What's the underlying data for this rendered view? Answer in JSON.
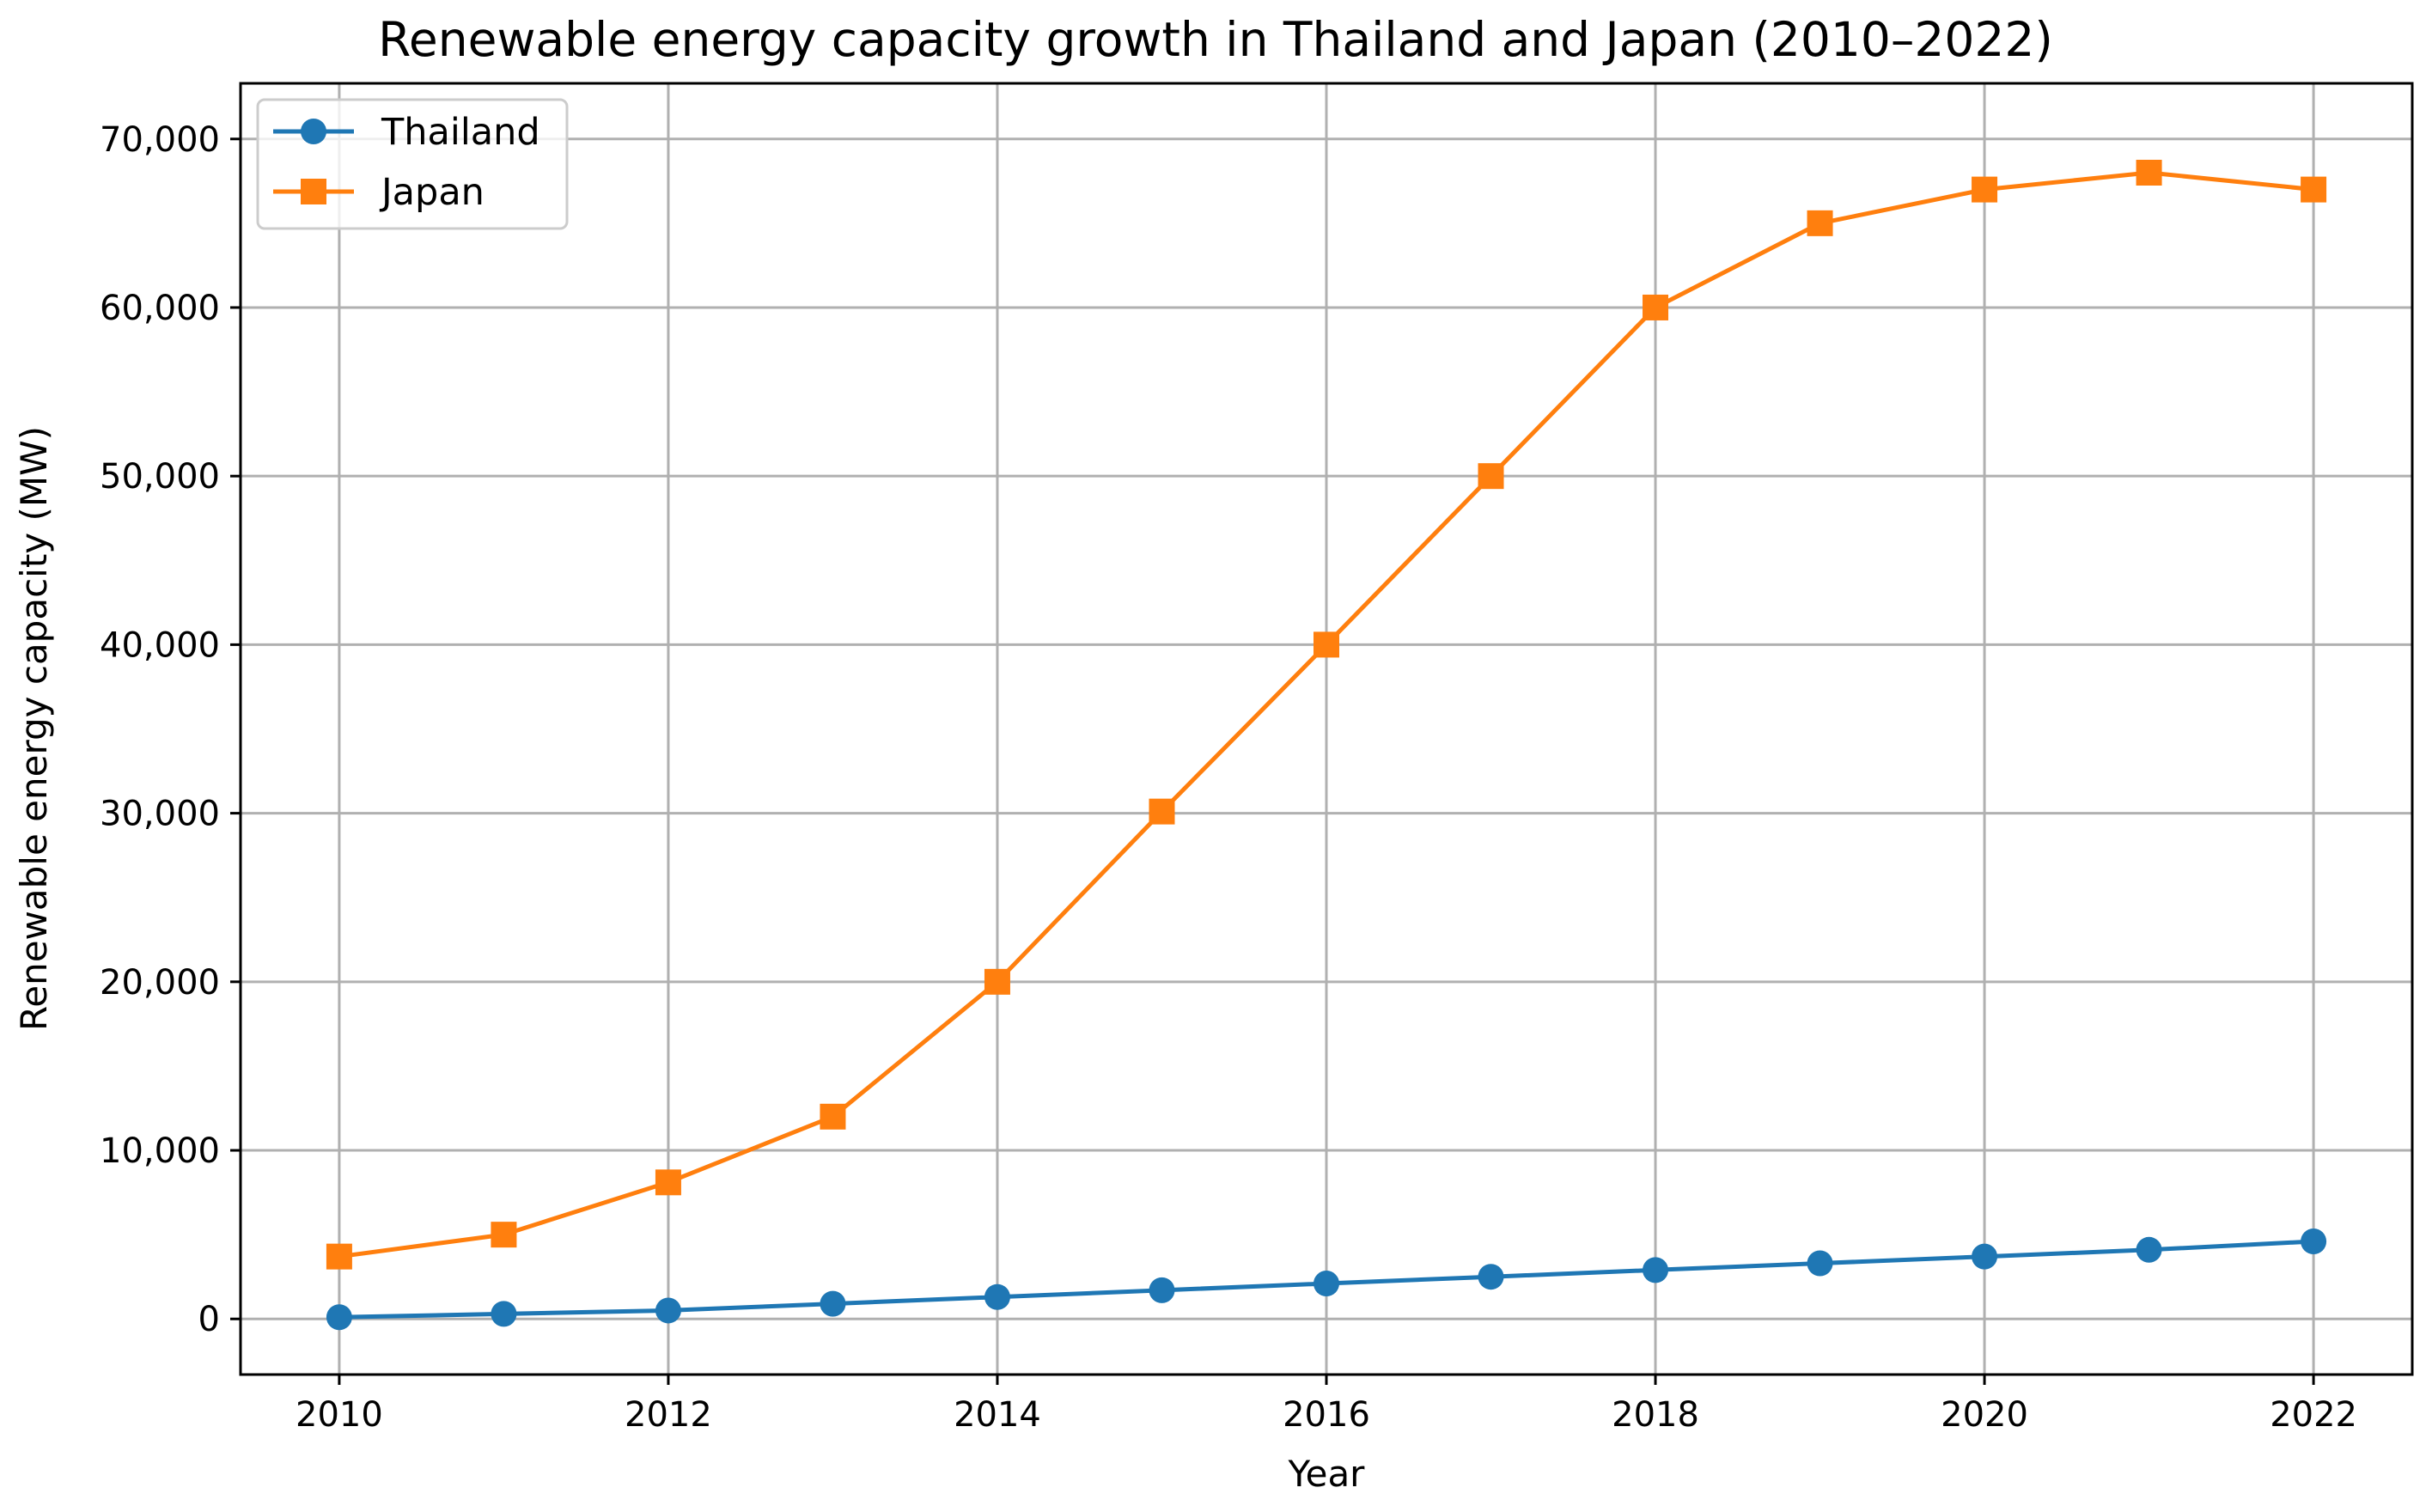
{
  "chart_data": {
    "type": "line",
    "title": "Renewable energy capacity growth in Thailand and Japan (2010–2022)",
    "xlabel": "Year",
    "ylabel": "Renewable energy capacity (MW)",
    "x": [
      2010,
      2011,
      2012,
      2013,
      2014,
      2015,
      2016,
      2017,
      2018,
      2019,
      2020,
      2021,
      2022
    ],
    "xlim": [
      2009.4,
      2022.6
    ],
    "ylim": [
      -3300,
      73300
    ],
    "xticks": [
      2010,
      2012,
      2014,
      2016,
      2018,
      2020,
      2022
    ],
    "xtick_labels": [
      "2010",
      "2012",
      "2014",
      "2016",
      "2018",
      "2020",
      "2022"
    ],
    "yticks": [
      0,
      10000,
      20000,
      30000,
      40000,
      50000,
      60000,
      70000
    ],
    "ytick_labels": [
      "0",
      "10,000",
      "20,000",
      "30,000",
      "40,000",
      "50,000",
      "60,000",
      "70,000"
    ],
    "grid": true,
    "legend_position": "top-left",
    "series": [
      {
        "name": "Thailand",
        "marker": "circle",
        "color": "#1f77b4",
        "values": [
          100,
          300,
          500,
          900,
          1300,
          1700,
          2100,
          2500,
          2900,
          3300,
          3700,
          4100,
          4600
        ]
      },
      {
        "name": "Japan",
        "marker": "square",
        "color": "#ff7f0e",
        "values": [
          3700,
          5000,
          8100,
          12000,
          20000,
          30100,
          40000,
          50000,
          60000,
          65000,
          67000,
          68000,
          67000
        ]
      }
    ]
  }
}
